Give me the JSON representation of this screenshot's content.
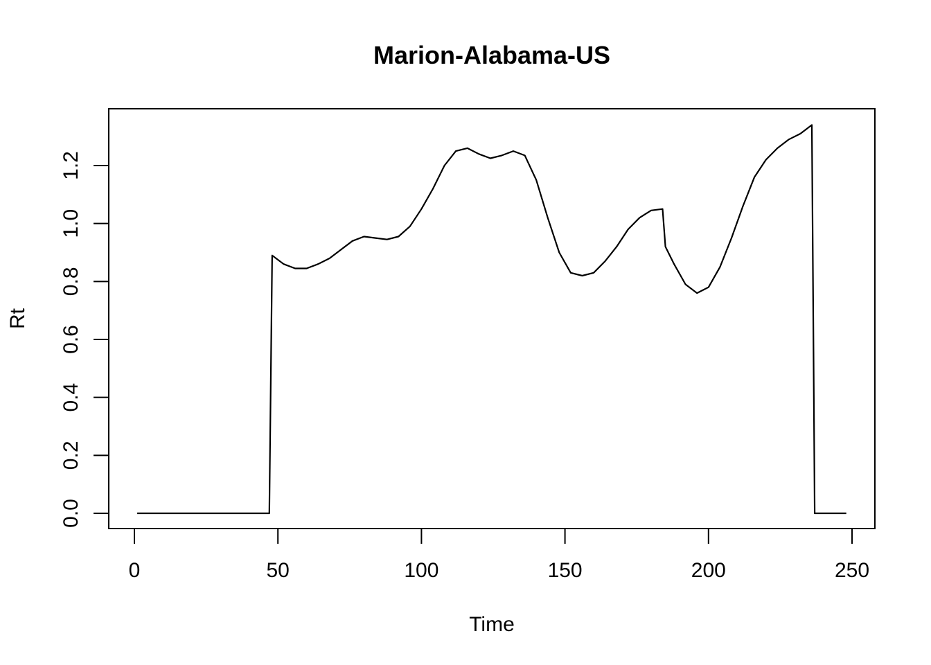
{
  "chart_data": {
    "type": "line",
    "title": "Marion-Alabama-US",
    "xlabel": "Time",
    "ylabel": "Rt",
    "xlim": [
      1,
      248
    ],
    "ylim": [
      0,
      1.34
    ],
    "x_ticks": [
      "0",
      "50",
      "100",
      "150",
      "200",
      "250"
    ],
    "y_ticks": [
      "0.0",
      "0.2",
      "0.4",
      "0.6",
      "0.8",
      "1.0",
      "1.2"
    ],
    "grid": false,
    "legend": "none",
    "line_color": "#000000",
    "series": [
      {
        "x": [
          1,
          47,
          48,
          52,
          56,
          60,
          64,
          68,
          72,
          76,
          80,
          84,
          88,
          92,
          96,
          100,
          104,
          108,
          112,
          116,
          120,
          124,
          128,
          132,
          136,
          140,
          144,
          148,
          152,
          156,
          160,
          164,
          168,
          172,
          176,
          180,
          184,
          185,
          188,
          192,
          196,
          200,
          204,
          208,
          212,
          216,
          220,
          224,
          228,
          232,
          236,
          237,
          248
        ],
        "values": [
          0,
          0,
          0.89,
          0.86,
          0.845,
          0.845,
          0.86,
          0.88,
          0.91,
          0.94,
          0.955,
          0.95,
          0.945,
          0.955,
          0.99,
          1.05,
          1.12,
          1.2,
          1.25,
          1.26,
          1.24,
          1.225,
          1.235,
          1.25,
          1.235,
          1.15,
          1.02,
          0.9,
          0.83,
          0.82,
          0.83,
          0.87,
          0.92,
          0.98,
          1.02,
          1.045,
          1.05,
          0.92,
          0.86,
          0.79,
          0.76,
          0.78,
          0.85,
          0.95,
          1.06,
          1.16,
          1.22,
          1.26,
          1.29,
          1.31,
          1.34,
          0,
          0
        ]
      }
    ]
  }
}
